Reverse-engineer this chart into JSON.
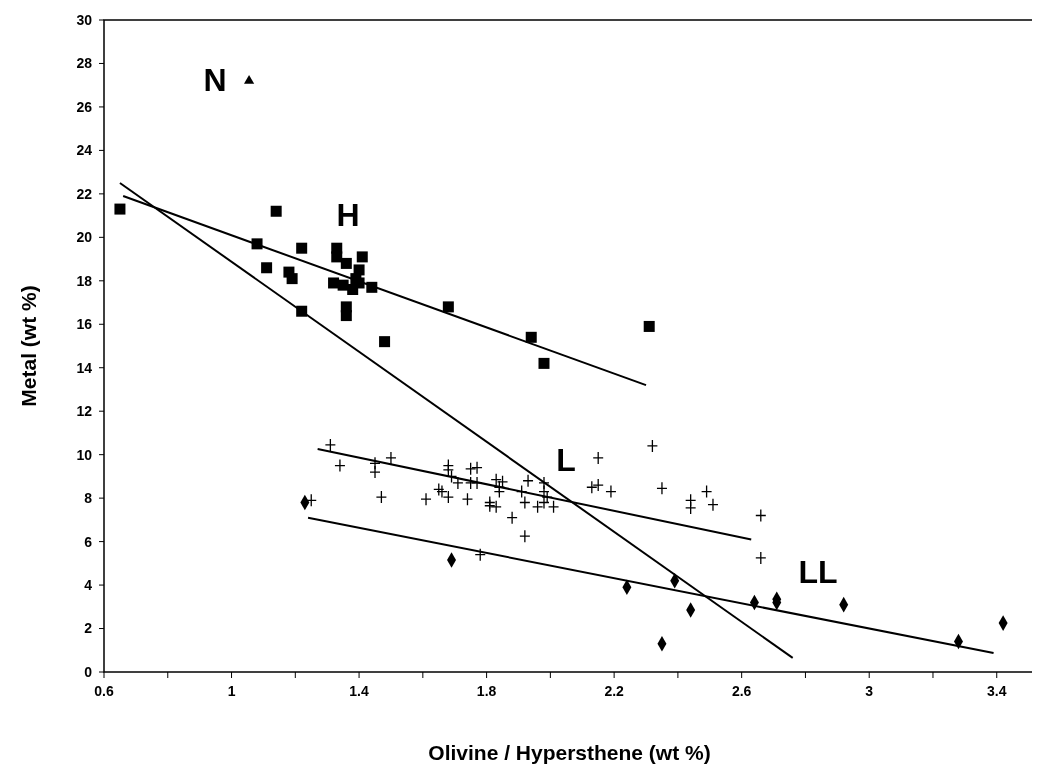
{
  "chart_data": {
    "type": "scatter",
    "xlabel": "Olivine / Hypersthene (wt %)",
    "ylabel": "Metal (wt %)",
    "xlim": [
      0.6,
      3.52
    ],
    "ylim": [
      0,
      30
    ],
    "xticks": [
      0.6,
      {
        "value": 0.8,
        "label": null
      },
      1,
      {
        "value": 1.2,
        "label": null
      },
      1.4,
      {
        "value": 1.6,
        "label": null
      },
      1.8,
      {
        "value": 2.0,
        "label": null
      },
      2.2,
      {
        "value": 2.4,
        "label": null
      },
      2.6,
      {
        "value": 2.8,
        "label": null
      },
      3,
      {
        "value": 3.2,
        "label": null
      },
      3.4
    ],
    "yticks": [
      0,
      2,
      4,
      6,
      8,
      10,
      12,
      14,
      16,
      18,
      20,
      22,
      24,
      26,
      28,
      30
    ],
    "grid": false,
    "annotations": [
      "N",
      "H",
      "L",
      "LL"
    ],
    "series": [
      {
        "marker": "square",
        "color": "#000000",
        "x": [
          0.65,
          1.14,
          1.08,
          1.22,
          1.11,
          1.18,
          1.19,
          1.33,
          1.33,
          1.36,
          1.41,
          1.4,
          1.39,
          1.32,
          1.35,
          1.38,
          1.4,
          1.44,
          1.36,
          1.36,
          1.22,
          1.48,
          1.68,
          1.94,
          1.98,
          2.31
        ],
        "values": [
          21.3,
          21.2,
          19.7,
          19.5,
          18.6,
          18.4,
          18.1,
          19.5,
          19.1,
          18.8,
          19.1,
          18.5,
          18.1,
          17.9,
          17.8,
          17.6,
          17.9,
          17.7,
          16.8,
          16.4,
          16.6,
          15.2,
          16.8,
          15.4,
          14.2,
          15.9
        ]
      },
      {
        "marker": "cross",
        "color": "#000000",
        "x": [
          1.31,
          1.34,
          1.45,
          1.45,
          1.5,
          1.47,
          1.25,
          1.61,
          1.65,
          1.66,
          1.68,
          1.68,
          1.68,
          1.69,
          1.71,
          1.74,
          1.75,
          1.77,
          1.75,
          1.77,
          1.81,
          1.81,
          1.83,
          1.83,
          1.85,
          1.84,
          1.84,
          1.88,
          1.91,
          1.92,
          1.93,
          1.92,
          1.96,
          1.98,
          1.98,
          1.98,
          1.99,
          2.01,
          1.78,
          2.13,
          2.15,
          2.15,
          2.19,
          2.32,
          2.35,
          2.44,
          2.44,
          2.49,
          2.51,
          2.66,
          2.66
        ],
        "values": [
          10.45,
          9.5,
          9.6,
          9.2,
          9.85,
          8.05,
          7.9,
          7.95,
          8.4,
          8.3,
          8.05,
          9.5,
          9.3,
          9.0,
          8.7,
          7.95,
          9.35,
          9.4,
          8.7,
          8.7,
          7.8,
          7.65,
          7.6,
          8.85,
          8.75,
          8.5,
          8.3,
          7.1,
          8.3,
          7.8,
          8.8,
          6.25,
          7.6,
          7.8,
          8.7,
          8.3,
          8.05,
          7.6,
          5.4,
          8.5,
          8.6,
          9.85,
          8.3,
          10.4,
          8.45,
          7.9,
          7.55,
          8.3,
          7.7,
          7.2,
          5.25
        ]
      },
      {
        "marker": "diamond",
        "color": "#000000",
        "x": [
          1.23,
          1.69,
          2.24,
          2.39,
          2.44,
          2.35,
          2.64,
          2.71,
          2.71,
          2.92,
          3.28,
          3.42
        ],
        "values": [
          7.8,
          5.15,
          3.9,
          4.2,
          2.85,
          1.3,
          3.2,
          3.35,
          3.2,
          3.1,
          1.4,
          2.25
        ]
      },
      {
        "marker": "triangle",
        "color": "#000000",
        "x": [
          1.055
        ],
        "values": [
          27.2
        ]
      },
      {
        "type": "line",
        "marker": "none",
        "color": "#000000",
        "x": [
          0.66,
          2.3
        ],
        "values": [
          21.9,
          13.2
        ]
      },
      {
        "type": "line",
        "marker": "none",
        "color": "#000000",
        "x": [
          0.65,
          2.76
        ],
        "values": [
          22.5,
          0.65
        ]
      },
      {
        "type": "line",
        "marker": "none",
        "color": "#000000",
        "x": [
          1.27,
          2.63
        ],
        "values": [
          10.26,
          6.1
        ]
      },
      {
        "type": "line",
        "marker": "none",
        "color": "#000000",
        "x": [
          1.24,
          3.39
        ],
        "values": [
          7.1,
          0.87
        ]
      }
    ]
  }
}
